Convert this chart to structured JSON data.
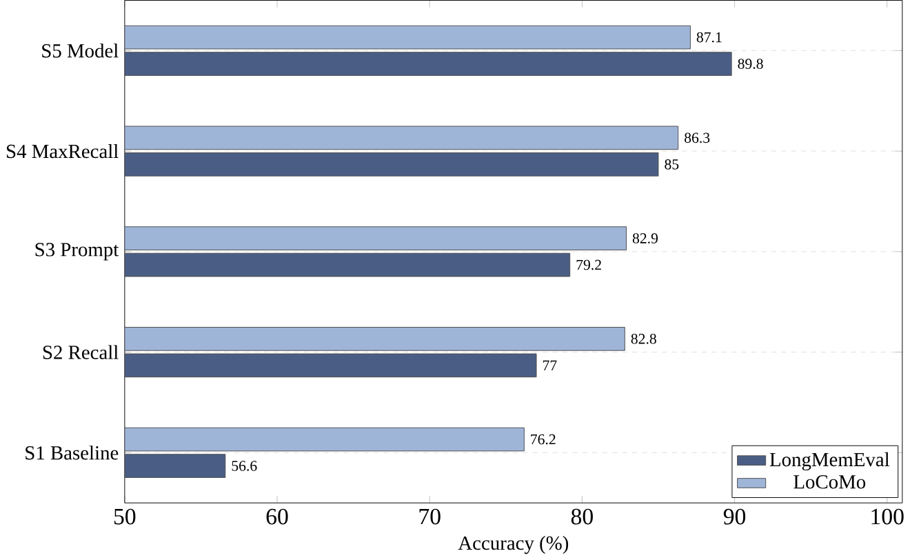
{
  "chart_data": {
    "type": "bar",
    "orientation": "horizontal",
    "xlabel": "Accuracy (%)",
    "categories": [
      "S5 Model",
      "S4 MaxRecall",
      "S3 Prompt",
      "S2 Recall",
      "S1 Baseline"
    ],
    "series": [
      {
        "name": "LongMemEval",
        "color": "#4a5e85",
        "values": [
          89.8,
          85,
          79.2,
          77,
          56.6
        ]
      },
      {
        "name": "LoCoMo",
        "color": "#9fb5d8",
        "values": [
          87.1,
          86.3,
          82.9,
          82.8,
          76.2
        ]
      }
    ],
    "xlim": [
      50,
      101
    ],
    "xticks": [
      50,
      60,
      70,
      80,
      90,
      100
    ],
    "grid": "y",
    "legend": "bottom right",
    "data_labels": true
  }
}
